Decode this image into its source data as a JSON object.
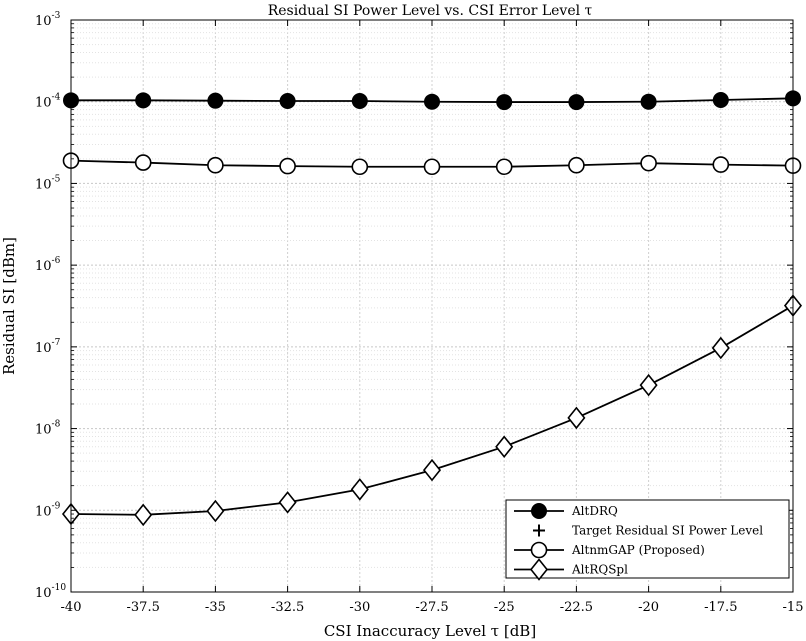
{
  "chart_data": {
    "type": "line",
    "title": "Residual SI Power Level vs. CSI Error Level τ",
    "xlabel": "CSI Inaccuracy Level τ [dB]",
    "ylabel": "Residual SI [dBm]",
    "x": [
      -40,
      -37.5,
      -35,
      -32.5,
      -30,
      -27.5,
      -25,
      -22.5,
      -20,
      -17.5,
      -15
    ],
    "x_tick_labels": [
      "-40",
      "-37.5",
      "-35",
      "-32.5",
      "-30",
      "-27.5",
      "-25",
      "-22.5",
      "-20",
      "-17.5",
      "-15"
    ],
    "xlim": [
      -40,
      -15
    ],
    "ylim": [
      1e-10,
      0.001
    ],
    "y_scale": "log",
    "y_tick_exponents": [
      "-10",
      "-9",
      "-8",
      "-7",
      "-6",
      "-5",
      "-4",
      "-3"
    ],
    "y_tick_base": "10",
    "grid": true,
    "minor_grid": true,
    "legend_position": "bottom-right",
    "series": [
      {
        "name": "AltDRQ",
        "marker": "filled-circle",
        "line": true,
        "color": "#000000",
        "values": [
          0.000104,
          0.000104,
          0.000103,
          0.000102,
          0.000102,
          0.0001,
          9.9e-05,
          9.9e-05,
          0.0001,
          0.000105,
          0.00011
        ]
      },
      {
        "name": "Target Residual SI Power Level",
        "marker": "plus",
        "line": false,
        "color": "#000000",
        "values": [
          2e-05,
          1.85e-05,
          1.72e-05,
          1.68e-05,
          1.65e-05,
          1.65e-05,
          1.65e-05,
          1.72e-05,
          1.82e-05,
          1.75e-05,
          1.7e-05
        ]
      },
      {
        "name": "AltnmGAP (Proposed)",
        "marker": "open-circle",
        "line": true,
        "color": "#000000",
        "values": [
          1.9e-05,
          1.8e-05,
          1.67e-05,
          1.63e-05,
          1.6e-05,
          1.6e-05,
          1.6e-05,
          1.67e-05,
          1.77e-05,
          1.7e-05,
          1.65e-05
        ]
      },
      {
        "name": "AltRQSpl",
        "marker": "open-diamond",
        "line": true,
        "color": "#000000",
        "values": [
          9e-10,
          8.8e-10,
          9.8e-10,
          1.25e-09,
          1.8e-09,
          3.1e-09,
          6e-09,
          1.35e-08,
          3.4e-08,
          9.7e-08,
          3.2e-07
        ]
      }
    ]
  }
}
